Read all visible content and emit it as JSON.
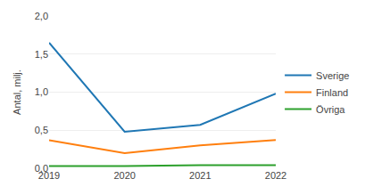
{
  "chart_data": {
    "type": "line",
    "ylabel": "Antal, milj.",
    "x": [
      2019,
      2020,
      2021,
      2022
    ],
    "series": [
      {
        "name": "Sverige",
        "values": [
          1.65,
          0.48,
          0.57,
          0.98
        ]
      },
      {
        "name": "Finland",
        "values": [
          0.37,
          0.2,
          0.3,
          0.37
        ]
      },
      {
        "name": "Övriga",
        "values": [
          0.03,
          0.03,
          0.04,
          0.04
        ]
      }
    ],
    "xlim": [
      2019,
      2022
    ],
    "xticks": [
      2019,
      2020,
      2021,
      2022
    ],
    "ylim": [
      0.0,
      2.0
    ],
    "yticks": [
      {
        "value": 0.0,
        "label": "0,0"
      },
      {
        "value": 0.5,
        "label": "0,5"
      },
      {
        "value": 1.0,
        "label": "1,0"
      },
      {
        "value": 1.5,
        "label": "1,5"
      },
      {
        "value": 2.0,
        "label": "2,0"
      }
    ],
    "grid": true,
    "legend": "right"
  }
}
